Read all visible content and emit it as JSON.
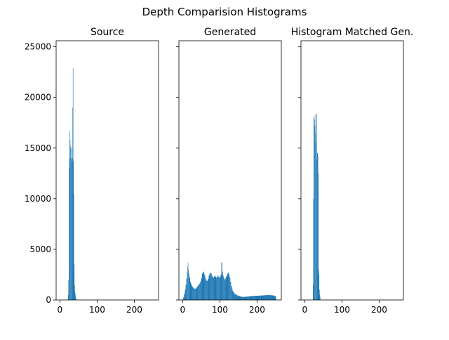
{
  "figure": {
    "title": "Depth Comparision Histograms"
  },
  "style": {
    "bar_color": "#1f77b4",
    "axes_color": "#000000",
    "background": "#ffffff"
  },
  "chart_data": [
    {
      "type": "bar",
      "title": "Source",
      "xlim": [
        -10,
        265
      ],
      "ylim": [
        0,
        25600
      ],
      "xticks": [
        0,
        100,
        200
      ],
      "yticks": [
        0,
        5000,
        10000,
        15000,
        20000,
        25000
      ],
      "show_yticklabels": true,
      "grid": false,
      "bins": [
        [
          22,
          500
        ],
        [
          23,
          2000
        ],
        [
          24,
          13000
        ],
        [
          25,
          14000
        ],
        [
          26,
          16700
        ],
        [
          27,
          15800
        ],
        [
          28,
          15200
        ],
        [
          29,
          15000
        ],
        [
          30,
          14000
        ],
        [
          31,
          13700
        ],
        [
          32,
          15000
        ],
        [
          33,
          14000
        ],
        [
          34,
          19000
        ],
        [
          35,
          22900
        ],
        [
          36,
          13700
        ],
        [
          37,
          10500
        ],
        [
          38,
          3500
        ],
        [
          39,
          1500
        ],
        [
          40,
          800
        ],
        [
          41,
          600
        ],
        [
          42,
          350
        ],
        [
          43,
          150
        ]
      ]
    },
    {
      "type": "bar",
      "title": "Generated",
      "xlim": [
        -10,
        265
      ],
      "ylim": [
        0,
        25600
      ],
      "xticks": [
        0,
        100,
        200
      ],
      "yticks": [
        0,
        5000,
        10000,
        15000,
        20000,
        25000
      ],
      "show_yticklabels": false,
      "grid": false,
      "bins": [
        [
          0,
          100
        ],
        [
          2,
          300
        ],
        [
          4,
          600
        ],
        [
          6,
          1000
        ],
        [
          8,
          1500
        ],
        [
          10,
          2100
        ],
        [
          12,
          2800
        ],
        [
          13,
          3300
        ],
        [
          14,
          3700
        ],
        [
          15,
          3000
        ],
        [
          16,
          2600
        ],
        [
          18,
          2200
        ],
        [
          20,
          1800
        ],
        [
          22,
          1600
        ],
        [
          24,
          1400
        ],
        [
          26,
          1300
        ],
        [
          28,
          1200
        ],
        [
          30,
          1150
        ],
        [
          32,
          1100
        ],
        [
          34,
          1100
        ],
        [
          36,
          1200
        ],
        [
          38,
          1300
        ],
        [
          40,
          1400
        ],
        [
          42,
          1500
        ],
        [
          44,
          1600
        ],
        [
          46,
          1700
        ],
        [
          48,
          1900
        ],
        [
          50,
          2200
        ],
        [
          52,
          2600
        ],
        [
          54,
          2800
        ],
        [
          56,
          2700
        ],
        [
          58,
          2500
        ],
        [
          60,
          2200
        ],
        [
          62,
          2000
        ],
        [
          64,
          1900
        ],
        [
          66,
          1900
        ],
        [
          68,
          2100
        ],
        [
          70,
          2400
        ],
        [
          72,
          2600
        ],
        [
          74,
          2700
        ],
        [
          76,
          2600
        ],
        [
          78,
          2400
        ],
        [
          80,
          2300
        ],
        [
          82,
          2200
        ],
        [
          84,
          2300
        ],
        [
          86,
          2400
        ],
        [
          88,
          2300
        ],
        [
          90,
          2200
        ],
        [
          92,
          2300
        ],
        [
          94,
          2400
        ],
        [
          96,
          2300
        ],
        [
          98,
          2200
        ],
        [
          100,
          2300
        ],
        [
          102,
          2500
        ],
        [
          104,
          3700
        ],
        [
          106,
          2800
        ],
        [
          108,
          2400
        ],
        [
          110,
          2200
        ],
        [
          112,
          2000
        ],
        [
          114,
          2100
        ],
        [
          116,
          2300
        ],
        [
          118,
          2400
        ],
        [
          120,
          2600
        ],
        [
          122,
          2700
        ],
        [
          124,
          2500
        ],
        [
          126,
          2200
        ],
        [
          128,
          1800
        ],
        [
          130,
          1400
        ],
        [
          132,
          1100
        ],
        [
          134,
          900
        ],
        [
          136,
          750
        ],
        [
          138,
          650
        ],
        [
          140,
          550
        ],
        [
          145,
          450
        ],
        [
          150,
          380
        ],
        [
          155,
          330
        ],
        [
          160,
          300
        ],
        [
          165,
          310
        ],
        [
          170,
          330
        ],
        [
          175,
          350
        ],
        [
          180,
          370
        ],
        [
          185,
          390
        ],
        [
          190,
          400
        ],
        [
          195,
          410
        ],
        [
          200,
          420
        ],
        [
          205,
          430
        ],
        [
          210,
          440
        ],
        [
          215,
          450
        ],
        [
          220,
          470
        ],
        [
          225,
          480
        ],
        [
          230,
          480
        ],
        [
          235,
          470
        ],
        [
          240,
          450
        ],
        [
          245,
          400
        ],
        [
          250,
          200
        ]
      ]
    },
    {
      "type": "bar",
      "title": "Histogram Matched Gen.",
      "xlim": [
        -10,
        265
      ],
      "ylim": [
        0,
        25600
      ],
      "xticks": [
        0,
        100,
        200
      ],
      "yticks": [
        0,
        5000,
        10000,
        15000,
        20000,
        25000
      ],
      "show_yticklabels": false,
      "grid": false,
      "bins": [
        [
          22,
          1500
        ],
        [
          23,
          10000
        ],
        [
          24,
          18000
        ],
        [
          25,
          18200
        ],
        [
          26,
          17800
        ],
        [
          27,
          17200
        ],
        [
          28,
          16500
        ],
        [
          29,
          18300
        ],
        [
          30,
          15500
        ],
        [
          31,
          13800
        ],
        [
          32,
          18400
        ],
        [
          33,
          14500
        ],
        [
          34,
          14500
        ],
        [
          35,
          14200
        ],
        [
          36,
          12500
        ],
        [
          37,
          3000
        ],
        [
          38,
          2500
        ],
        [
          39,
          1000
        ],
        [
          40,
          500
        ],
        [
          41,
          300
        ]
      ]
    }
  ]
}
